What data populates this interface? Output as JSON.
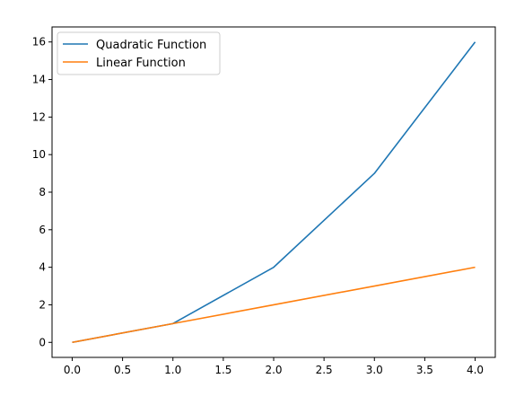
{
  "chart_data": {
    "type": "line",
    "title": "",
    "xlabel": "",
    "ylabel": "",
    "xlim": [
      -0.2,
      4.2
    ],
    "ylim": [
      -0.8,
      16.8
    ],
    "xticks": [
      0.0,
      0.5,
      1.0,
      1.5,
      2.0,
      2.5,
      3.0,
      3.5,
      4.0
    ],
    "xtick_labels": [
      "0.0",
      "0.5",
      "1.0",
      "1.5",
      "2.0",
      "2.5",
      "3.0",
      "3.5",
      "4.0"
    ],
    "yticks": [
      0,
      2,
      4,
      6,
      8,
      10,
      12,
      14,
      16
    ],
    "ytick_labels": [
      "0",
      "2",
      "4",
      "6",
      "8",
      "10",
      "12",
      "14",
      "16"
    ],
    "grid": false,
    "legend_position": "top-left",
    "x": [
      0,
      1,
      2,
      3,
      4
    ],
    "series": [
      {
        "name": "Quadratic Function",
        "values": [
          0,
          1,
          4,
          9,
          16
        ],
        "color": "#1f77b4"
      },
      {
        "name": "Linear Function",
        "values": [
          0,
          1,
          2,
          3,
          4
        ],
        "color": "#ff7f0e"
      }
    ]
  }
}
